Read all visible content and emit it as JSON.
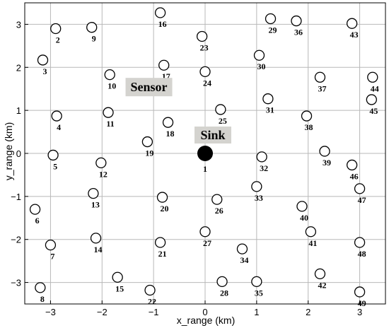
{
  "chart_data": {
    "type": "scatter",
    "xlabel": "x_range (km)",
    "ylabel": "y_range (km)",
    "xlim": [
      -3.5,
      3.5
    ],
    "ylim": [
      -3.5,
      3.5
    ],
    "xticks": [
      -3,
      -2,
      -1,
      0,
      1,
      2,
      3
    ],
    "yticks": [
      -3,
      -2,
      -1,
      0,
      1,
      2,
      3
    ],
    "grid": true,
    "sink": {
      "id": "1",
      "x": 0.0,
      "y": 0.0
    },
    "sensors": [
      {
        "id": "2",
        "x": -2.9,
        "y": 2.9
      },
      {
        "id": "3",
        "x": -3.15,
        "y": 2.17
      },
      {
        "id": "4",
        "x": -2.88,
        "y": 0.87
      },
      {
        "id": "5",
        "x": -2.95,
        "y": -0.04
      },
      {
        "id": "6",
        "x": -3.3,
        "y": -1.3
      },
      {
        "id": "7",
        "x": -3.0,
        "y": -2.13
      },
      {
        "id": "8",
        "x": -3.2,
        "y": -3.12
      },
      {
        "id": "9",
        "x": -2.2,
        "y": 2.93
      },
      {
        "id": "10",
        "x": -1.85,
        "y": 1.83
      },
      {
        "id": "11",
        "x": -1.88,
        "y": 0.95
      },
      {
        "id": "12",
        "x": -2.02,
        "y": -0.22
      },
      {
        "id": "13",
        "x": -2.17,
        "y": -0.93
      },
      {
        "id": "14",
        "x": -2.12,
        "y": -1.97
      },
      {
        "id": "15",
        "x": -1.7,
        "y": -2.88
      },
      {
        "id": "16",
        "x": -0.87,
        "y": 3.27
      },
      {
        "id": "17",
        "x": -0.8,
        "y": 2.05
      },
      {
        "id": "18",
        "x": -0.72,
        "y": 0.72
      },
      {
        "id": "19",
        "x": -1.12,
        "y": 0.27
      },
      {
        "id": "20",
        "x": -0.83,
        "y": -1.02
      },
      {
        "id": "21",
        "x": -0.87,
        "y": -2.07
      },
      {
        "id": "22",
        "x": -1.07,
        "y": -3.18
      },
      {
        "id": "23",
        "x": -0.06,
        "y": 2.72
      },
      {
        "id": "24",
        "x": 0.0,
        "y": 1.9
      },
      {
        "id": "25",
        "x": 0.3,
        "y": 1.02
      },
      {
        "id": "26",
        "x": 0.23,
        "y": -1.07
      },
      {
        "id": "27",
        "x": 0.0,
        "y": -1.82
      },
      {
        "id": "28",
        "x": 0.33,
        "y": -2.98
      },
      {
        "id": "29",
        "x": 1.27,
        "y": 3.13
      },
      {
        "id": "30",
        "x": 1.05,
        "y": 2.28
      },
      {
        "id": "31",
        "x": 1.22,
        "y": 1.27
      },
      {
        "id": "32",
        "x": 1.1,
        "y": -0.08
      },
      {
        "id": "33",
        "x": 1.0,
        "y": -0.77
      },
      {
        "id": "34",
        "x": 0.72,
        "y": -2.22
      },
      {
        "id": "35",
        "x": 1.0,
        "y": -2.98
      },
      {
        "id": "36",
        "x": 1.77,
        "y": 3.08
      },
      {
        "id": "37",
        "x": 2.23,
        "y": 1.77
      },
      {
        "id": "38",
        "x": 1.97,
        "y": 0.87
      },
      {
        "id": "39",
        "x": 2.32,
        "y": 0.05
      },
      {
        "id": "40",
        "x": 1.88,
        "y": -1.23
      },
      {
        "id": "41",
        "x": 2.05,
        "y": -1.82
      },
      {
        "id": "42",
        "x": 2.23,
        "y": -2.8
      },
      {
        "id": "43",
        "x": 2.85,
        "y": 3.02
      },
      {
        "id": "44",
        "x": 3.25,
        "y": 1.77
      },
      {
        "id": "45",
        "x": 3.23,
        "y": 1.25
      },
      {
        "id": "46",
        "x": 2.85,
        "y": -0.27
      },
      {
        "id": "47",
        "x": 3.0,
        "y": -0.82
      },
      {
        "id": "48",
        "x": 3.0,
        "y": -2.07
      },
      {
        "id": "49",
        "x": 3.0,
        "y": -3.22
      }
    ],
    "annotations": [
      {
        "text": "Sensor",
        "target": "18"
      },
      {
        "text": "Sink",
        "target": "1"
      }
    ]
  }
}
